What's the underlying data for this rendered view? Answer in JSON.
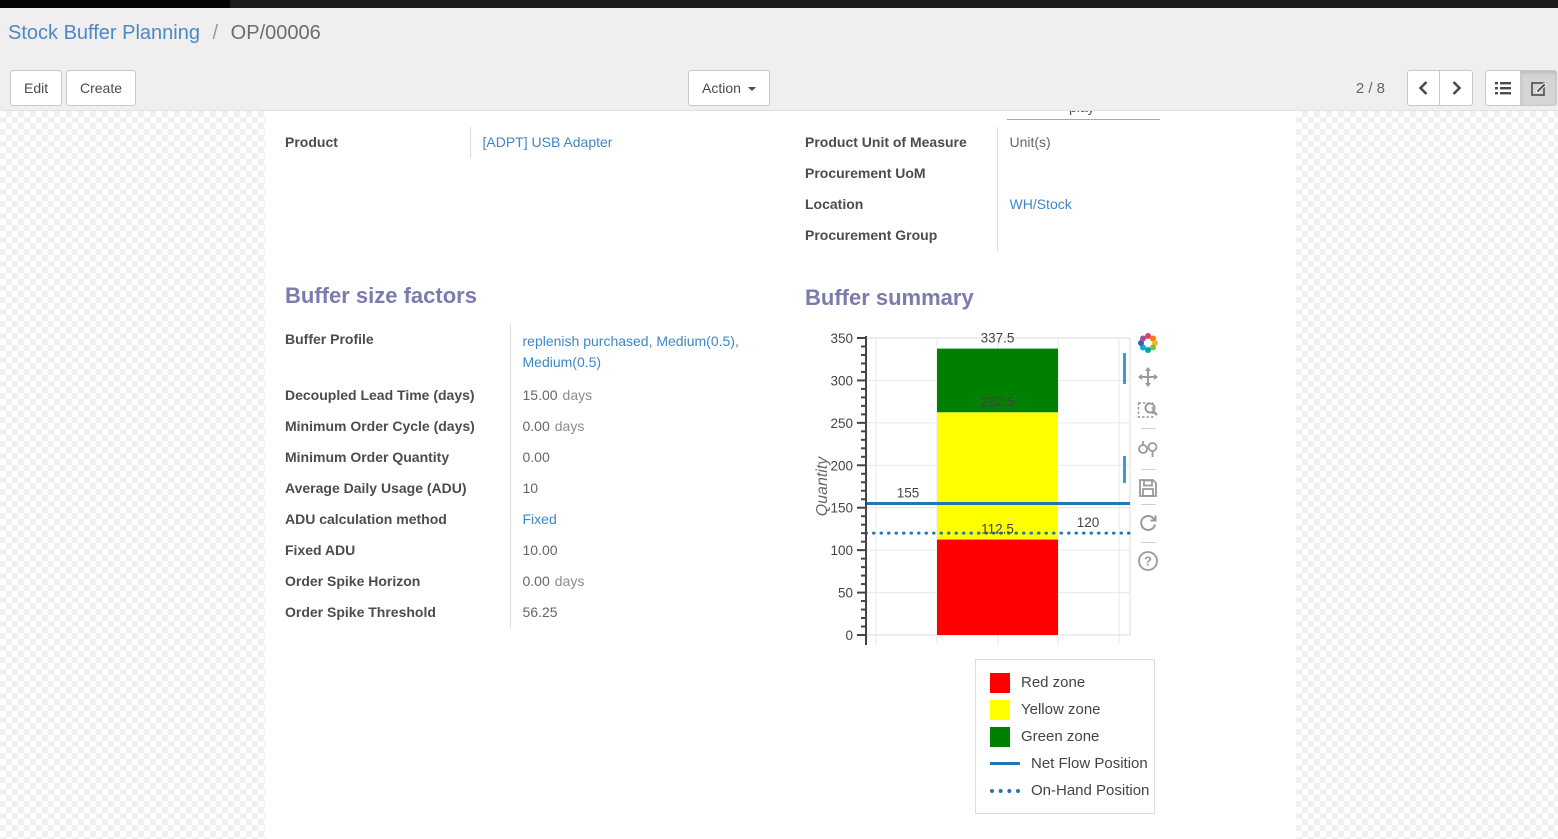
{
  "breadcrumb": {
    "parent": "Stock Buffer Planning",
    "separator": "/",
    "current": "OP/00006"
  },
  "control_panel": {
    "edit_label": "Edit",
    "create_label": "Create",
    "action_label": "Action",
    "pager_value": "2 / 8"
  },
  "colors": {
    "link": "#3f87c4",
    "heading": "#7c7bad",
    "modebar_active": "#3d9bd5"
  },
  "form": {
    "clipped_fragment": "play",
    "left_group": {
      "rows": [
        {
          "label": "Product",
          "value": "[ADPT] USB Adapter"
        }
      ]
    },
    "right_group": {
      "rows": [
        {
          "label": "Product Unit of Measure",
          "value": "Unit(s)"
        },
        {
          "label": "Procurement UoM",
          "value": ""
        },
        {
          "label": "Location",
          "value": "WH/Stock"
        },
        {
          "label": "Procurement Group",
          "value": ""
        }
      ]
    },
    "buffer_size_factors": {
      "title": "Buffer size factors",
      "rows": [
        {
          "label": "Buffer Profile",
          "value": "replenish purchased, Medium(0.5), Medium(0.5)"
        },
        {
          "label": "Decoupled Lead Time (days)",
          "value": "15.00",
          "unit": "days"
        },
        {
          "label": "Minimum Order Cycle (days)",
          "value": "0.00",
          "unit": "days"
        },
        {
          "label": "Minimum Order Quantity",
          "value": "0.00"
        },
        {
          "label": "Average Daily Usage (ADU)",
          "value": "10"
        },
        {
          "label": "ADU calculation method",
          "value": "Fixed"
        },
        {
          "label": "Fixed ADU",
          "value": "10.00"
        },
        {
          "label": "Order Spike Horizon",
          "value": "0.00",
          "unit": "days"
        },
        {
          "label": "Order Spike Threshold",
          "value": "56.25"
        }
      ]
    },
    "buffer_summary": {
      "title": "Buffer summary"
    }
  },
  "chart_data": {
    "type": "bar",
    "title": "",
    "xlabel": "",
    "ylabel": "Quantity",
    "ylim": [
      0,
      350
    ],
    "ytick_step": 50,
    "minor_tick_step": 10,
    "grid": true,
    "zones": [
      {
        "name": "Red zone",
        "from": 0,
        "to": 112.5,
        "color": "#ff0000"
      },
      {
        "name": "Yellow zone",
        "from": 112.5,
        "to": 262.5,
        "color": "#ffff00"
      },
      {
        "name": "Green zone",
        "from": 262.5,
        "to": 337.5,
        "color": "#008000"
      }
    ],
    "lines": [
      {
        "name": "Net Flow Position",
        "value": 155,
        "style": "solid",
        "color": "#1f77b4",
        "label_side": "left"
      },
      {
        "name": "On-Hand Position",
        "value": 120,
        "style": "dotted",
        "color": "#1f77b4",
        "label_side": "right"
      }
    ],
    "annotations": [
      "337.5",
      "262.5",
      "112.5",
      "155",
      "120"
    ],
    "legend": {
      "position": "bottom-right",
      "entries": [
        "Red zone",
        "Yellow zone",
        "Green zone",
        "Net Flow Position",
        "On-Hand Position"
      ]
    }
  },
  "modebar": {
    "icons": [
      "plotly-logo",
      "pan",
      "box-zoom",
      "zoom-in-out",
      "save",
      "reset-axes",
      "help"
    ]
  }
}
